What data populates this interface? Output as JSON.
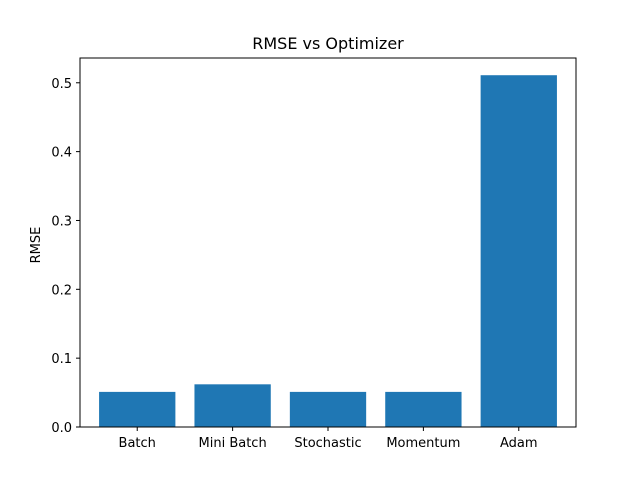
{
  "chart_data": {
    "type": "bar",
    "title": "RMSE vs Optimizer",
    "xlabel": "",
    "ylabel": "RMSE",
    "categories": [
      "Batch",
      "Mini Batch",
      "Stochastic",
      "Momentum",
      "Adam"
    ],
    "values": [
      0.051,
      0.062,
      0.051,
      0.051,
      0.511
    ],
    "ylim": [
      0,
      0.536
    ],
    "yticks": [
      0.0,
      0.1,
      0.2,
      0.3,
      0.4,
      0.5
    ],
    "ytick_labels": [
      "0.0",
      "0.1",
      "0.2",
      "0.3",
      "0.4",
      "0.5"
    ],
    "grid": false,
    "legend": "none",
    "bar_color": "#1f77b4"
  }
}
